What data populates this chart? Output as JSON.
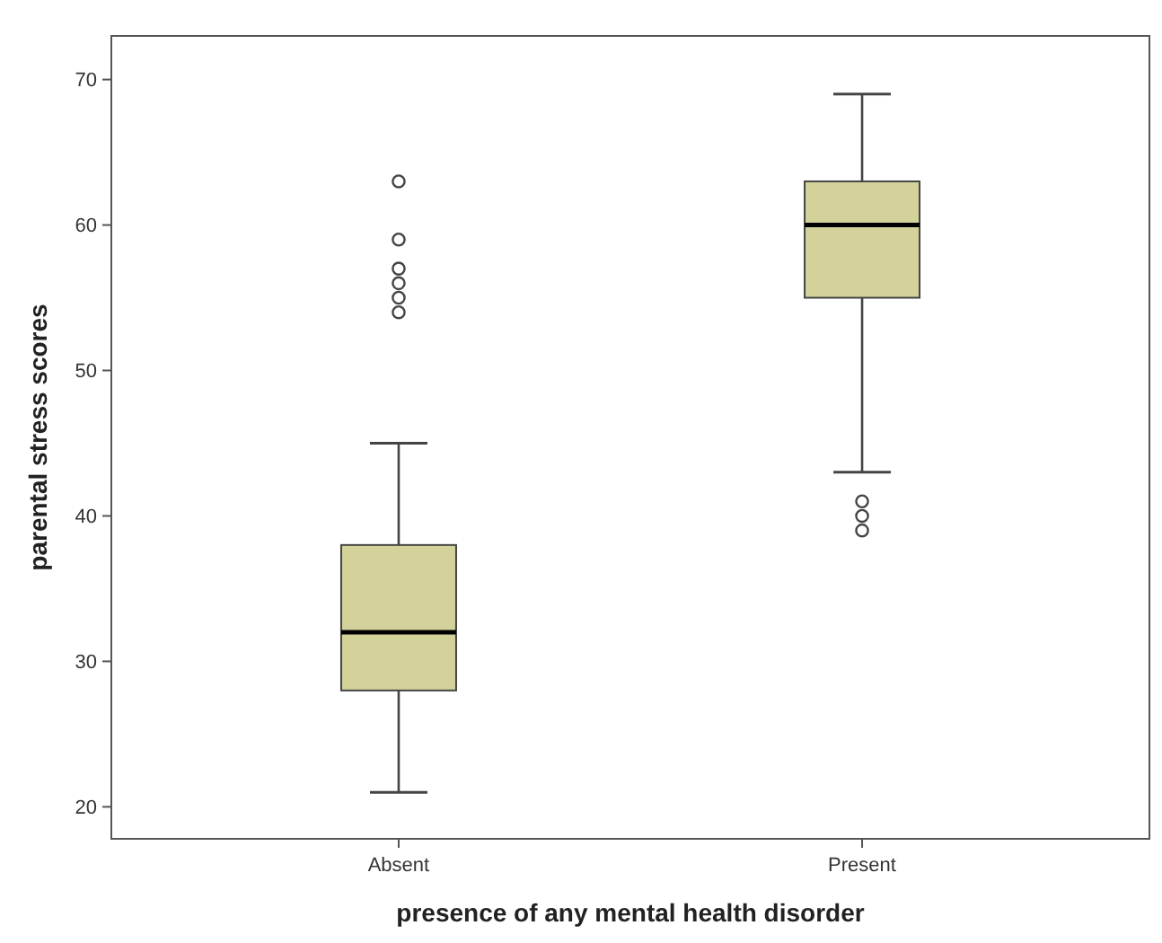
{
  "chart_data": {
    "type": "box",
    "xlabel": "presence of any mental health disorder",
    "ylabel": "parental stress scores",
    "categories": [
      "Absent",
      "Present"
    ],
    "color": "#d3d29a",
    "boxes": [
      {
        "low": 21,
        "q1": 28,
        "median": 32,
        "q3": 38,
        "high": 45,
        "outliers": [
          54,
          55,
          56,
          57,
          59,
          63
        ]
      },
      {
        "low": 43,
        "q1": 55,
        "median": 60,
        "q3": 63,
        "high": 69,
        "outliers": [
          39,
          40,
          41
        ]
      }
    ],
    "ylim": [
      17.8,
      73
    ],
    "yticks": [
      20,
      30,
      40,
      50,
      60,
      70
    ],
    "grid": false
  }
}
